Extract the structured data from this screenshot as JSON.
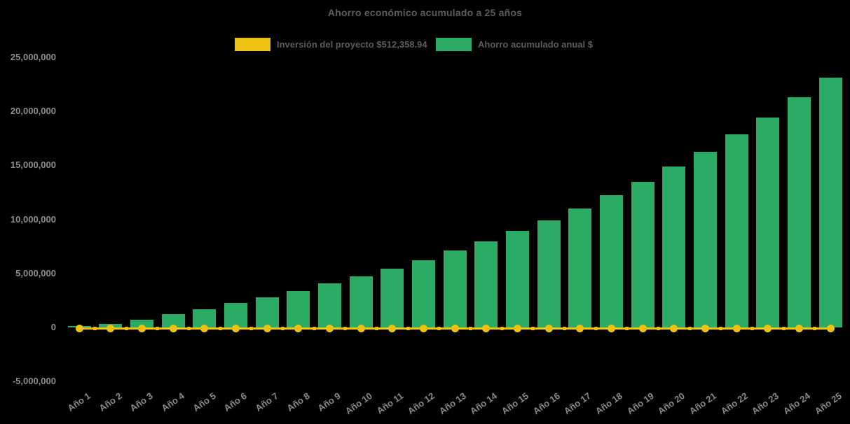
{
  "page": {
    "background": "#000000"
  },
  "chart_data": {
    "type": "bar",
    "title": "Ahorro económico acumulado a 25 años",
    "xlabel": "",
    "ylabel": "",
    "ylim": [
      -5000000,
      25000000
    ],
    "grid": false,
    "legend_position": "top",
    "categories": [
      "Año 1",
      "Año 2",
      "Año 3",
      "Año 4",
      "Año 5",
      "Año 6",
      "Año 7",
      "Año 8",
      "Año 9",
      "Año 10",
      "Año 11",
      "Año 12",
      "Año 13",
      "Año 14",
      "Año 15",
      "Año 16",
      "Año 17",
      "Año 18",
      "Año 19",
      "Año 20",
      "Año 21",
      "Año 22",
      "Año 23",
      "Año 24",
      "Año 25"
    ],
    "yticks": {
      "values": [
        25000000,
        20000000,
        15000000,
        10000000,
        5000000,
        0,
        -5000000
      ],
      "labels": [
        "25,000,000",
        "20,000,000",
        "15,000,000",
        "10,000,000",
        "5,000,000",
        "0",
        "-5,000,000"
      ]
    },
    "series": [
      {
        "name": "Inversión del proyecto $512,358.94",
        "type": "line",
        "color": "#EDC211",
        "value": 512358.94,
        "values": [
          512358.94,
          512358.94,
          512358.94,
          512358.94,
          512358.94,
          512358.94,
          512358.94,
          512358.94,
          512358.94,
          512358.94,
          512358.94,
          512358.94,
          512358.94,
          512358.94,
          512358.94,
          512358.94,
          512358.94,
          512358.94,
          512358.94,
          512358.94,
          512358.94,
          512358.94,
          512358.94,
          512358.94,
          512358.94
        ]
      },
      {
        "name": "Ahorro acumulado anual $",
        "type": "bar",
        "color": "#2BAB63",
        "values": [
          100000,
          350000,
          700000,
          1230000,
          1700000,
          2270000,
          2780000,
          3400000,
          4050000,
          4700000,
          5430000,
          6230000,
          7100000,
          7960000,
          8960000,
          9900000,
          11020000,
          12270000,
          13500000,
          14870000,
          16280000,
          17850000,
          19450000,
          21300000,
          23100000
        ]
      }
    ]
  }
}
